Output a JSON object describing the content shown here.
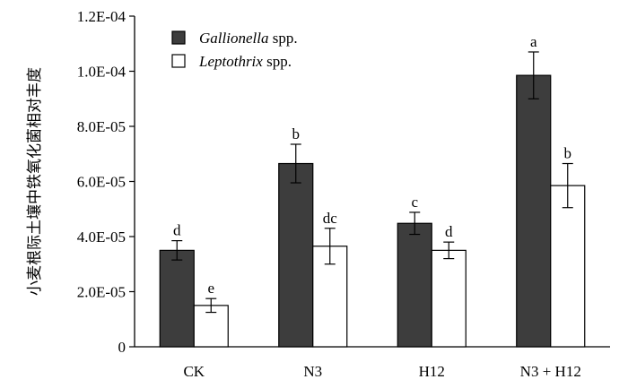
{
  "chart_data": {
    "type": "bar",
    "title": "",
    "xlabel": "",
    "ylabel": "小麦根际土壤中铁氧化菌相对丰度",
    "ylim": [
      0,
      0.00012
    ],
    "yticks": [
      {
        "value": 0,
        "label": "0"
      },
      {
        "value": 2e-05,
        "label": "2.0E-05"
      },
      {
        "value": 4e-05,
        "label": "4.0E-05"
      },
      {
        "value": 6e-05,
        "label": "6.0E-05"
      },
      {
        "value": 8e-05,
        "label": "8.0E-05"
      },
      {
        "value": 0.0001,
        "label": "1.0E-04"
      },
      {
        "value": 0.00012,
        "label": "1.2E-04"
      }
    ],
    "categories": [
      "CK",
      "N3",
      "H12",
      "N3 + H12"
    ],
    "legend_position": "top-left",
    "grid": false,
    "series": [
      {
        "name_italic": "Gallionella",
        "name_suffix": " spp.",
        "color": "#3d3d3d",
        "values": [
          3.5e-05,
          6.65e-05,
          4.48e-05,
          9.85e-05
        ],
        "errors": [
          3.5e-06,
          7e-06,
          4e-06,
          8.5e-06
        ],
        "labels": [
          "d",
          "b",
          "c",
          "a"
        ]
      },
      {
        "name_italic": "Leptothrix",
        "name_suffix": " spp.",
        "color": "#ffffff",
        "values": [
          1.5e-05,
          3.65e-05,
          3.5e-05,
          5.85e-05
        ],
        "errors": [
          2.5e-06,
          6.5e-06,
          3e-06,
          8e-06
        ],
        "labels": [
          "e",
          "dc",
          "d",
          "b"
        ]
      }
    ]
  }
}
